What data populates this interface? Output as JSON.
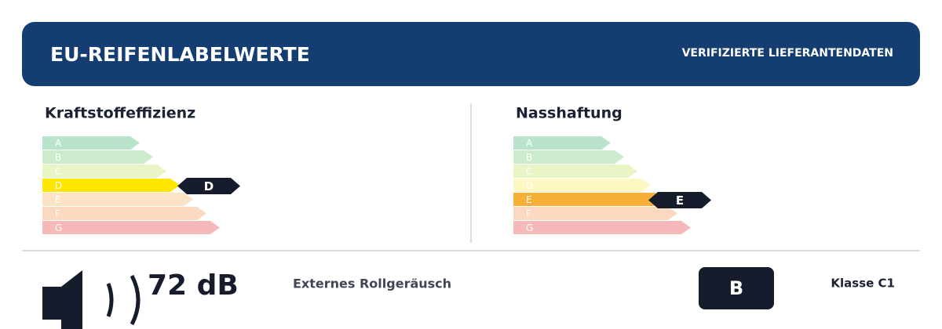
{
  "header": {
    "title": "EU-REIFENLABELWERTE",
    "badge": "VERIFIZIERTE LIEFERANTENDATEN"
  },
  "fuel": {
    "title": "Kraftstoffeffizienz",
    "classes": [
      "A",
      "B",
      "C",
      "D",
      "E",
      "F",
      "G"
    ],
    "rating": "D"
  },
  "wet": {
    "title": "Nasshaftung",
    "classes": [
      "A",
      "B",
      "C",
      "D",
      "E",
      "F",
      "G"
    ],
    "rating": "E"
  },
  "noise": {
    "value": "72 dB",
    "label": "Externes Rollgeräusch",
    "class": "B",
    "tyre_class": "Klasse C1"
  }
}
